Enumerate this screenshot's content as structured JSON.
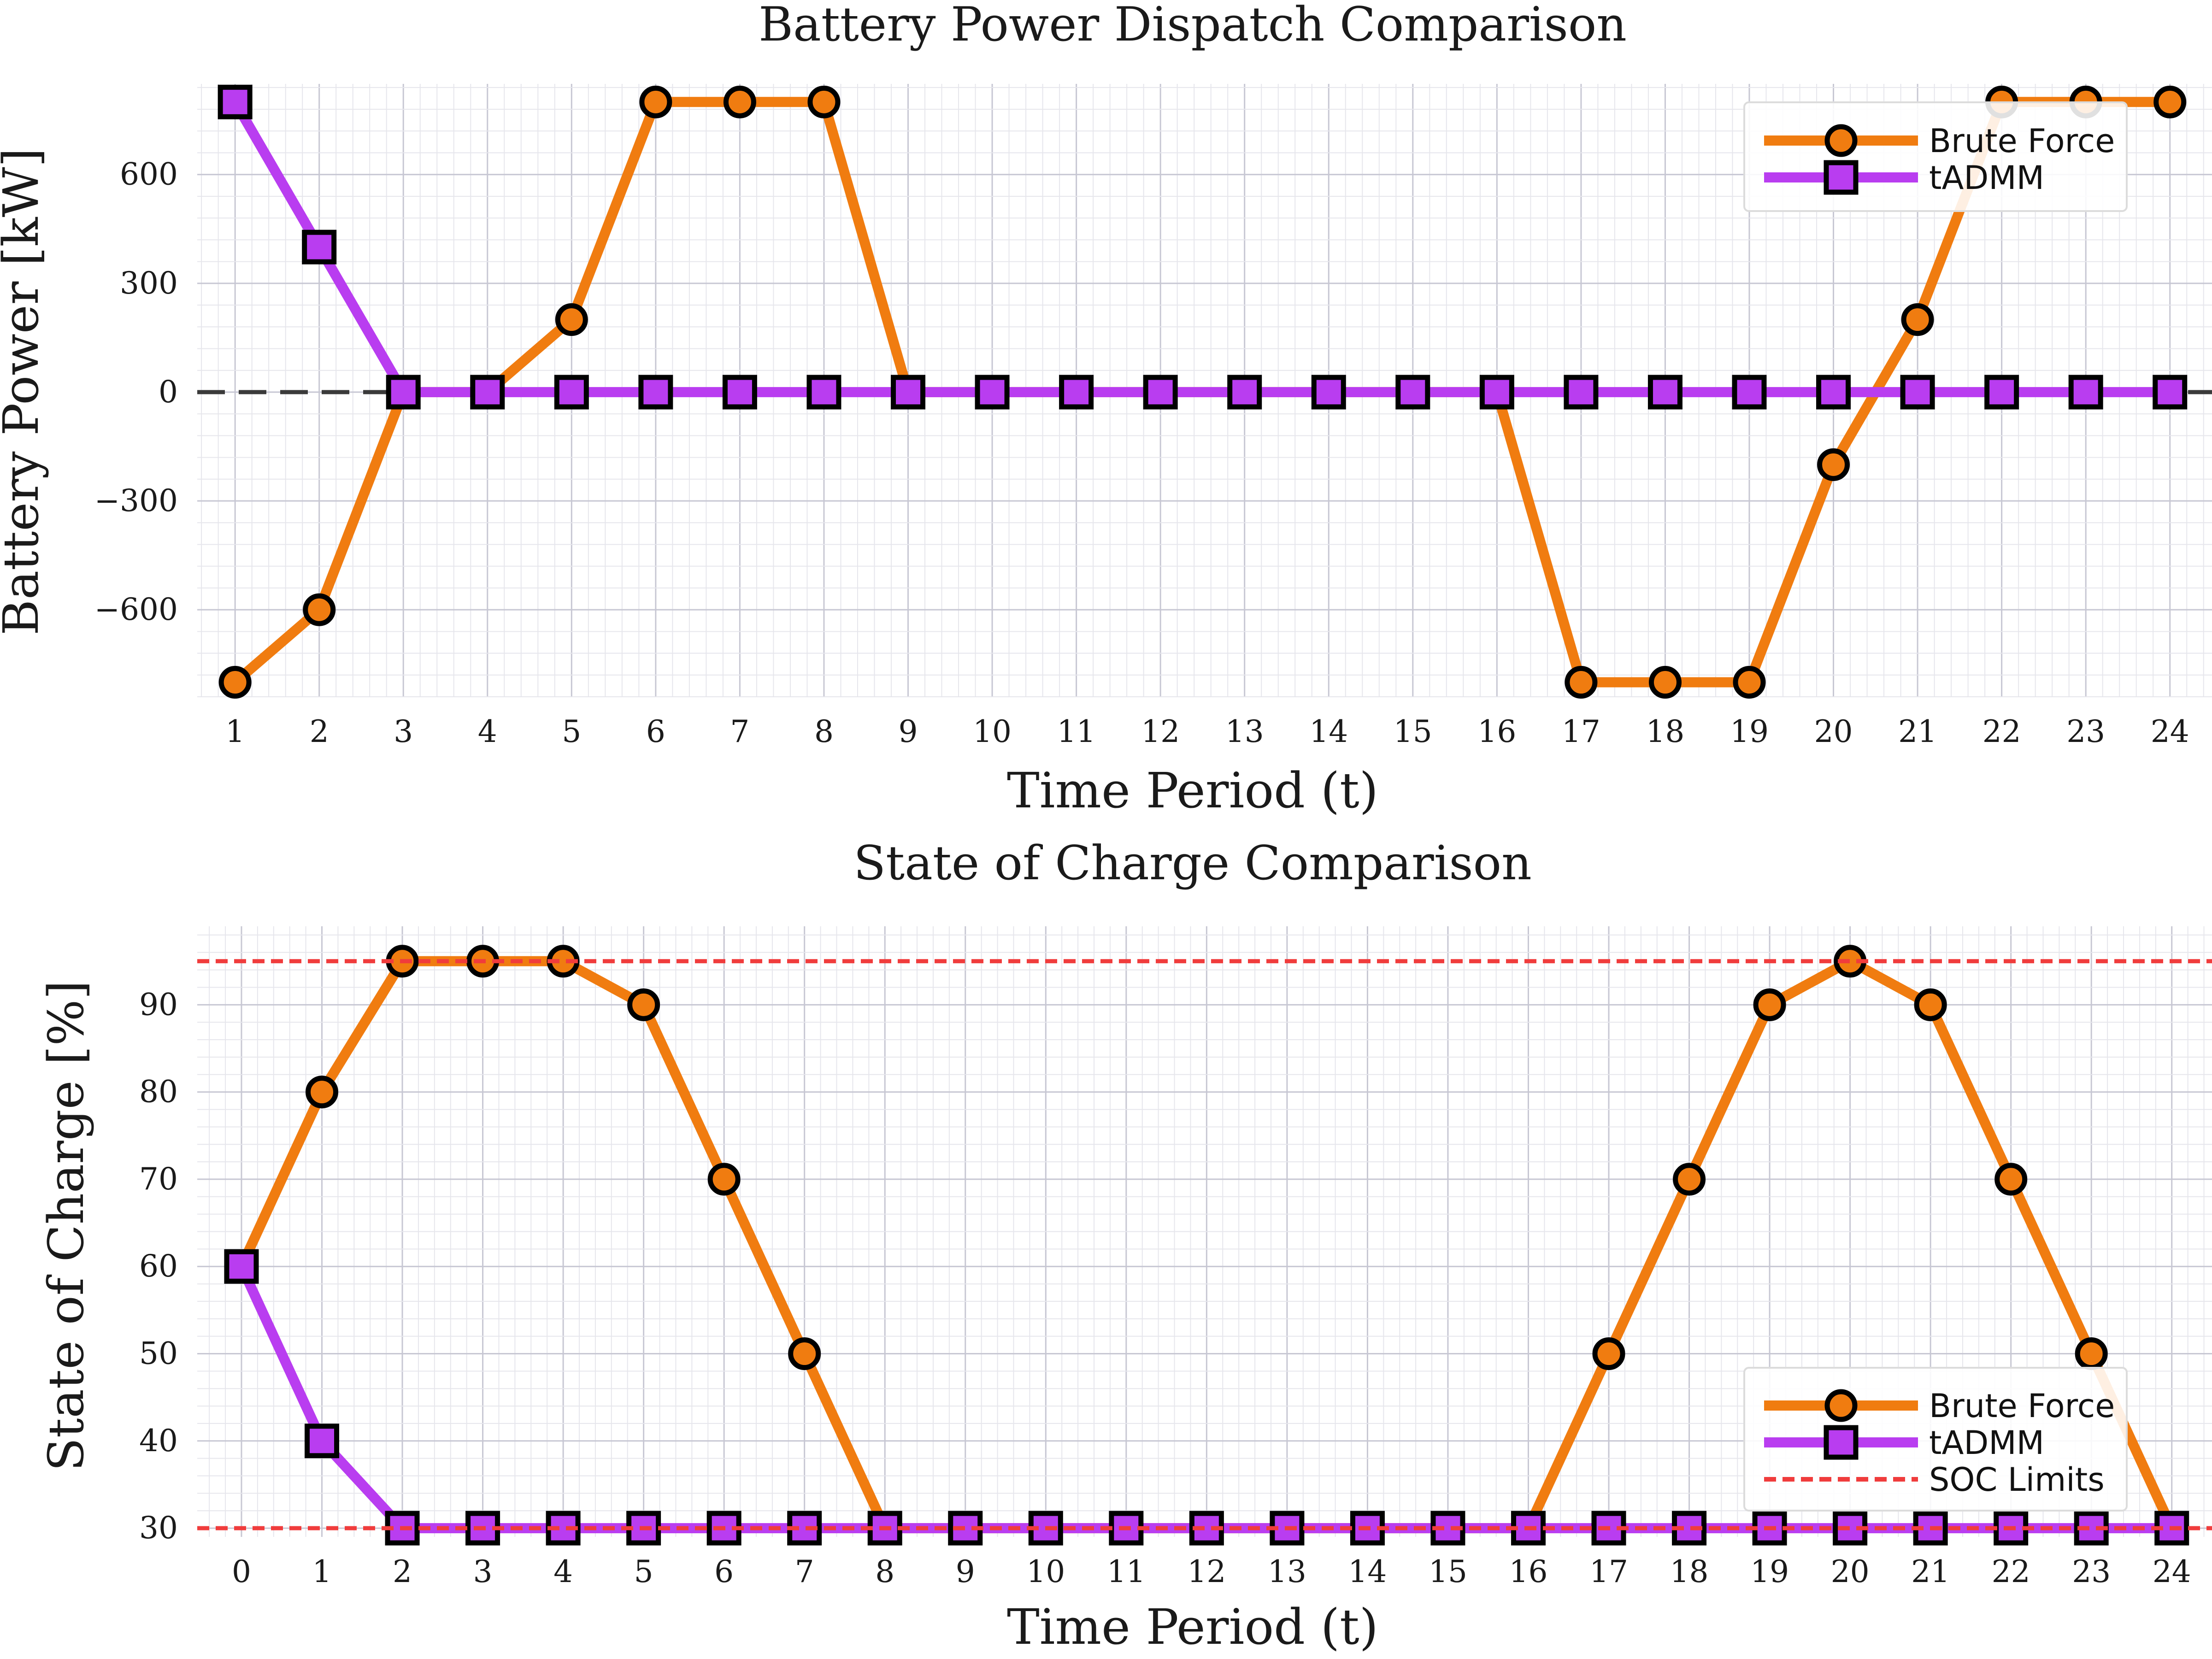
{
  "colors": {
    "brute": "#f07c10",
    "tadmm": "#b93df0",
    "limit": "#f03c3c",
    "zero": "#3a3a3a",
    "grid_major": "#c7c7d3",
    "grid_minor": "#e6e6ec",
    "marker_edge": "#000000"
  },
  "chart_data": [
    {
      "type": "line",
      "title": "Battery Power Dispatch Comparison",
      "xlabel": "Time Period (t)",
      "ylabel": "Battery Power [kW]",
      "x": [
        1,
        2,
        3,
        4,
        5,
        6,
        7,
        8,
        9,
        10,
        11,
        12,
        13,
        14,
        15,
        16,
        17,
        18,
        19,
        20,
        21,
        22,
        23,
        24
      ],
      "xticks": [
        "1",
        "2",
        "3",
        "4",
        "5",
        "6",
        "7",
        "8",
        "9",
        "10",
        "11",
        "12",
        "13",
        "14",
        "15",
        "16",
        "17",
        "18",
        "19",
        "20",
        "21",
        "22",
        "23",
        "24"
      ],
      "xlim": [
        0.55,
        24.5
      ],
      "ylim": [
        -840,
        850
      ],
      "yticks": [
        -600,
        -300,
        0,
        300,
        600
      ],
      "ytick_labels": [
        "−600",
        "−300",
        "0",
        "300",
        "600"
      ],
      "reference_line": {
        "y": 0,
        "style": "dashed"
      },
      "grid": true,
      "legend_position": "top-right",
      "series": [
        {
          "name": "Brute Force",
          "marker": "circle",
          "values": [
            -800,
            -600,
            0,
            0,
            200,
            800,
            800,
            800,
            0,
            0,
            0,
            0,
            0,
            0,
            0,
            0,
            -800,
            -800,
            -800,
            -200,
            200,
            800,
            800,
            800
          ]
        },
        {
          "name": "tADMM",
          "marker": "square",
          "values": [
            800,
            400,
            0,
            0,
            0,
            0,
            0,
            0,
            0,
            0,
            0,
            0,
            0,
            0,
            0,
            0,
            0,
            0,
            0,
            0,
            0,
            0,
            0,
            0
          ]
        }
      ]
    },
    {
      "type": "line",
      "title": "State of Charge Comparison",
      "xlabel": "Time Period (t)",
      "ylabel": "State of Charge [%]",
      "x": [
        0,
        1,
        2,
        3,
        4,
        5,
        6,
        7,
        8,
        9,
        10,
        11,
        12,
        13,
        14,
        15,
        16,
        17,
        18,
        19,
        20,
        21,
        22,
        23,
        24
      ],
      "xticks": [
        "0",
        "1",
        "2",
        "3",
        "4",
        "5",
        "6",
        "7",
        "8",
        "9",
        "10",
        "11",
        "12",
        "13",
        "14",
        "15",
        "16",
        "17",
        "18",
        "19",
        "20",
        "21",
        "22",
        "23",
        "24"
      ],
      "xlim": [
        -0.55,
        24.5
      ],
      "ylim": [
        29,
        99
      ],
      "yticks": [
        30,
        40,
        50,
        60,
        70,
        80,
        90
      ],
      "ytick_labels": [
        "30",
        "40",
        "50",
        "60",
        "70",
        "80",
        "90"
      ],
      "grid": true,
      "legend_position": "bottom-right",
      "limits": {
        "name": "SOC Limits",
        "values": [
          30,
          95
        ],
        "style": "dashed"
      },
      "series": [
        {
          "name": "Brute Force",
          "marker": "circle",
          "values": [
            60,
            80,
            95,
            95,
            95,
            90,
            70,
            50,
            30,
            30,
            30,
            30,
            30,
            30,
            30,
            30,
            30,
            50,
            70,
            90,
            95,
            90,
            70,
            50,
            30
          ]
        },
        {
          "name": "tADMM",
          "marker": "square",
          "values": [
            60,
            40,
            30,
            30,
            30,
            30,
            30,
            30,
            30,
            30,
            30,
            30,
            30,
            30,
            30,
            30,
            30,
            30,
            30,
            30,
            30,
            30,
            30,
            30,
            30
          ]
        }
      ]
    }
  ]
}
